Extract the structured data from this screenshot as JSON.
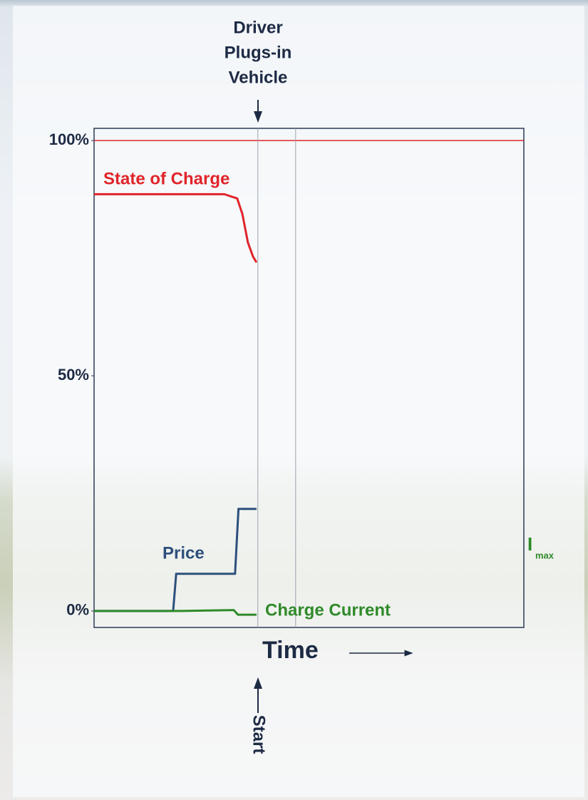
{
  "chart_data": {
    "type": "line",
    "annotations": {
      "plug_in": [
        "Driver",
        "Plugs-in",
        "Vehicle"
      ],
      "start": "Start",
      "imax": "I",
      "imax_sub": "max"
    },
    "x_label": "Time",
    "xlim": [
      0,
      100
    ],
    "ylim": [
      -3.5,
      102.6
    ],
    "yticks": [
      {
        "value": 0,
        "label": "0%"
      },
      {
        "value": 50,
        "label": "50%"
      },
      {
        "value": 100,
        "label": "100%"
      }
    ],
    "hlines": [
      {
        "value": 100,
        "color": "#e0242a"
      }
    ],
    "vlines": [
      38.1,
      46.9
    ],
    "series": [
      {
        "name": "State of Charge",
        "color": "#e0242a",
        "x": [
          0,
          30.3,
          33.3,
          34.5,
          35.8,
          37.0,
          37.8
        ],
        "values": [
          88.6,
          88.6,
          87.7,
          84.4,
          78.3,
          75.3,
          74.1
        ]
      },
      {
        "name": "Price",
        "color": "#2d4f7c",
        "x": [
          0,
          18.4,
          19.1,
          32.8,
          33.6,
          37.8
        ],
        "values": [
          0,
          0,
          7.9,
          7.9,
          21.7,
          21.7
        ]
      },
      {
        "name": "Charge Current",
        "color": "#2f8a2a",
        "x": [
          0,
          20,
          32.5,
          33.5,
          37.8
        ],
        "values": [
          0,
          0,
          0.2,
          -0.8,
          -0.8
        ]
      }
    ]
  }
}
